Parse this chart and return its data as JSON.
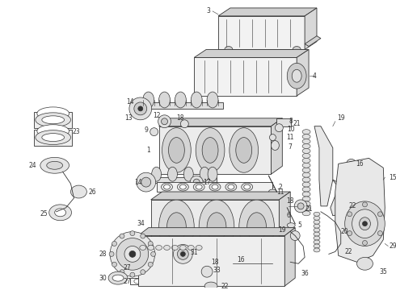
{
  "bg_color": "#ffffff",
  "line_color": "#333333",
  "fig_width": 4.9,
  "fig_height": 3.6,
  "dpi": 100,
  "gray_light": "#e8e8e8",
  "gray_mid": "#d0d0d0",
  "gray_dark": "#b0b0b0"
}
